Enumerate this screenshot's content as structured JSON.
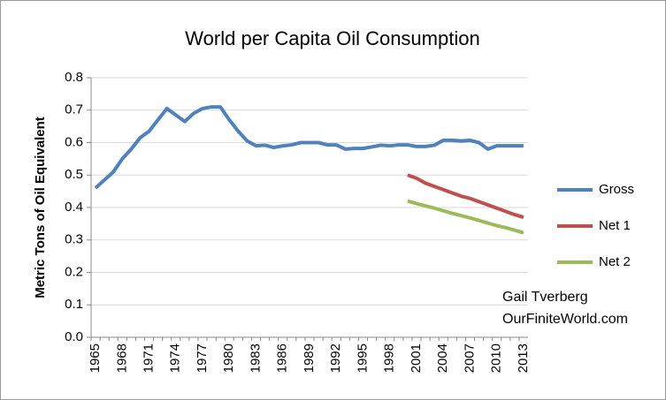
{
  "chart_data": {
    "type": "line",
    "title": "World per Capita Oil Consumption",
    "y_label": "Metric Tons of Oil Equivalent",
    "annotations": [
      "Gail Tverberg",
      "OurFiniteWorld.com"
    ],
    "categories": [
      "1965",
      null,
      null,
      "1968",
      null,
      null,
      "1971",
      null,
      null,
      "1974",
      null,
      null,
      "1977",
      null,
      null,
      "1980",
      null,
      null,
      "1983",
      null,
      null,
      "1986",
      null,
      null,
      "1989",
      null,
      null,
      "1992",
      null,
      null,
      "1995",
      null,
      null,
      "1998",
      null,
      null,
      "2001",
      null,
      null,
      "2004",
      null,
      null,
      "2007",
      null,
      null,
      "2010",
      null,
      null,
      "2013"
    ],
    "series": [
      {
        "name": "Gross",
        "color": "#4f81bd",
        "values": [
          0.46,
          0.485,
          0.51,
          0.55,
          0.58,
          0.615,
          0.635,
          0.67,
          0.705,
          0.685,
          0.665,
          0.69,
          0.705,
          0.71,
          0.71,
          0.67,
          0.635,
          0.605,
          0.59,
          0.592,
          0.585,
          0.59,
          0.593,
          0.6,
          0.6,
          0.6,
          0.593,
          0.593,
          0.58,
          0.582,
          0.582,
          0.587,
          0.592,
          0.59,
          0.593,
          0.593,
          0.588,
          0.588,
          0.592,
          0.607,
          0.607,
          0.605,
          0.607,
          0.6,
          0.58,
          0.59,
          0.59,
          0.59,
          0.59
        ]
      },
      {
        "name": "Net 1",
        "color": "#c0504d",
        "values": [
          null,
          null,
          null,
          null,
          null,
          null,
          null,
          null,
          null,
          null,
          null,
          null,
          null,
          null,
          null,
          null,
          null,
          null,
          null,
          null,
          null,
          null,
          null,
          null,
          null,
          null,
          null,
          null,
          null,
          null,
          null,
          null,
          null,
          null,
          null,
          0.5,
          0.49,
          0.475,
          0.465,
          0.455,
          0.445,
          0.435,
          0.428,
          0.418,
          0.408,
          0.398,
          0.388,
          0.378,
          0.37
        ]
      },
      {
        "name": "Net 2",
        "color": "#9bbb59",
        "values": [
          null,
          null,
          null,
          null,
          null,
          null,
          null,
          null,
          null,
          null,
          null,
          null,
          null,
          null,
          null,
          null,
          null,
          null,
          null,
          null,
          null,
          null,
          null,
          null,
          null,
          null,
          null,
          null,
          null,
          null,
          null,
          null,
          null,
          null,
          null,
          0.42,
          0.412,
          0.405,
          0.398,
          0.39,
          0.382,
          0.375,
          0.368,
          0.36,
          0.352,
          0.344,
          0.338,
          0.33,
          0.322
        ]
      }
    ],
    "ylim": [
      0,
      0.8
    ],
    "yticks": [
      {
        "value": 0,
        "label": "0.0"
      },
      0.1,
      0.2,
      0.3,
      0.4,
      0.5,
      0.6,
      0.7,
      0.8
    ],
    "grid": true,
    "legend": "right"
  }
}
